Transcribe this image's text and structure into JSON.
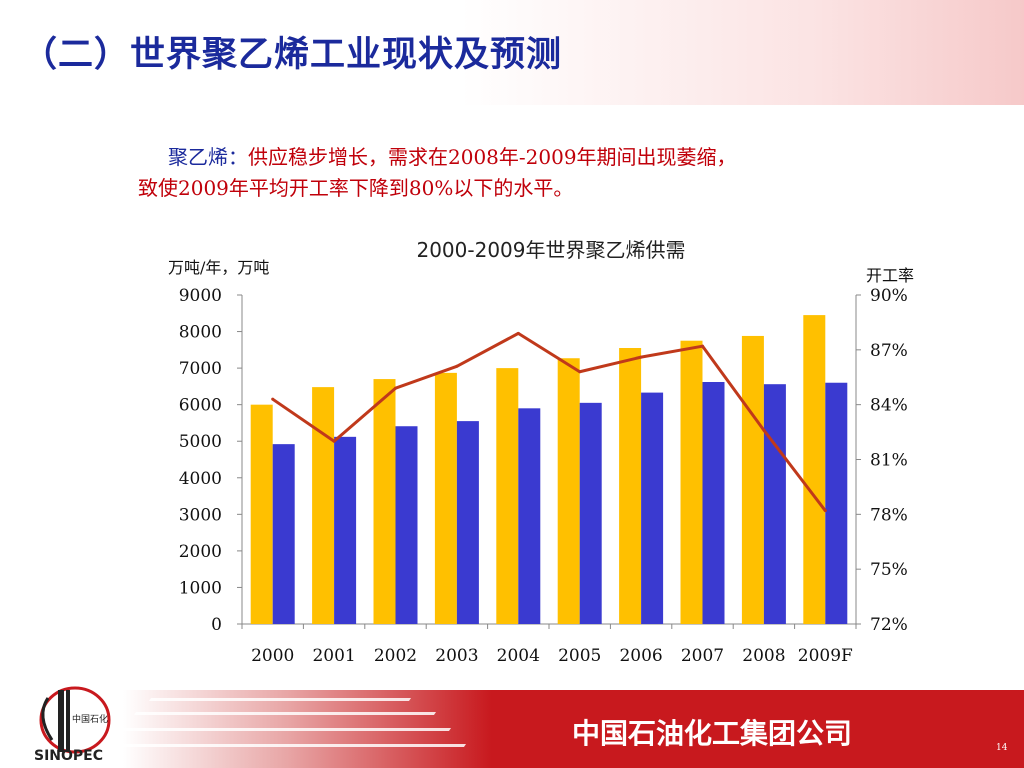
{
  "slide": {
    "title": "（二）世界聚乙烯工业现状及预测",
    "desc_lead": "聚乙烯：",
    "desc_line1_rest": "供应稳步增长，需求在2008年-2009年期间出现萎缩，",
    "desc_line2": "致使2009年平均开工率下降到80%以下的水平。"
  },
  "footer": {
    "company": "中国石油化工集团公司",
    "page_number": "14",
    "logo_text": "中国石化",
    "logo_wordmark": "SINOPEC"
  },
  "colors": {
    "title_blue": "#1b2a9c",
    "text_red": "#c0000a",
    "bar_supply": "#ffc000",
    "bar_demand": "#3a3ad0",
    "line_rate": "#c0391b",
    "footer_red": "#c8191e"
  },
  "chart_data": {
    "type": "bar",
    "title": "2000-2009年世界聚乙烯供需",
    "ylabel": "万吨/年，万吨",
    "y2label": "开工率",
    "categories": [
      "2000",
      "2001",
      "2002",
      "2003",
      "2004",
      "2005",
      "2006",
      "2007",
      "2008",
      "2009F"
    ],
    "ylim": [
      0,
      9000
    ],
    "yticks": [
      "9000",
      "8000",
      "7000",
      "6000",
      "5000",
      "4000",
      "3000",
      "2000",
      "1000",
      "0"
    ],
    "y2lim": [
      72,
      90
    ],
    "y2ticks": [
      "90%",
      "87%",
      "84%",
      "81%",
      "78%",
      "75%",
      "72%"
    ],
    "series": [
      {
        "values": [
          6000,
          6480,
          6700,
          6870,
          7000,
          7270,
          7550,
          7750,
          7880,
          8450
        ]
      },
      {
        "values": [
          4920,
          5120,
          5410,
          5550,
          5900,
          6050,
          6330,
          6620,
          6560,
          6600
        ]
      },
      {
        "values": [
          84.3,
          82.0,
          84.9,
          86.1,
          87.9,
          85.8,
          86.6,
          87.2,
          82.6,
          78.2
        ]
      }
    ],
    "grid": false,
    "legend": "none"
  }
}
